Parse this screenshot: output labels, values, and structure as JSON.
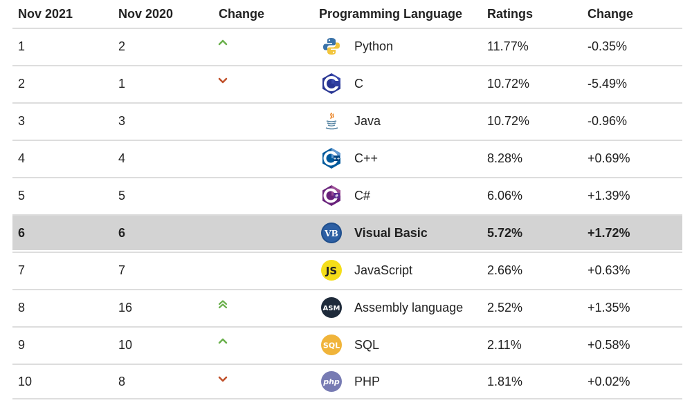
{
  "headers": {
    "col1": "Nov 2021",
    "col2": "Nov 2020",
    "col3": "Change",
    "col4": "Programming Language",
    "col5": "Ratings",
    "col6": "Change"
  },
  "colors": {
    "up": "#6ab04c",
    "down": "#c0502a",
    "highlight_row": "#d3d3d3",
    "divider": "#dddddd"
  },
  "rows": [
    {
      "rank_2021": "1",
      "rank_2020": "2",
      "trend": "up",
      "language": "Python",
      "icon": "python-logo-icon",
      "rating": "11.77%",
      "change": "-0.35%"
    },
    {
      "rank_2021": "2",
      "rank_2020": "1",
      "trend": "down",
      "language": "C",
      "icon": "c-logo-icon",
      "rating": "10.72%",
      "change": "-5.49%"
    },
    {
      "rank_2021": "3",
      "rank_2020": "3",
      "trend": "none",
      "language": "Java",
      "icon": "java-logo-icon",
      "rating": "10.72%",
      "change": "-0.96%"
    },
    {
      "rank_2021": "4",
      "rank_2020": "4",
      "trend": "none",
      "language": "C++",
      "icon": "cpp-logo-icon",
      "rating": "8.28%",
      "change": "+0.69%"
    },
    {
      "rank_2021": "5",
      "rank_2020": "5",
      "trend": "none",
      "language": "C#",
      "icon": "csharp-logo-icon",
      "rating": "6.06%",
      "change": "+1.39%"
    },
    {
      "rank_2021": "6",
      "rank_2020": "6",
      "trend": "none",
      "language": "Visual Basic",
      "icon": "vb-logo-icon",
      "rating": "5.72%",
      "change": "+1.72%",
      "highlighted": true
    },
    {
      "rank_2021": "7",
      "rank_2020": "7",
      "trend": "none",
      "language": "JavaScript",
      "icon": "js-logo-icon",
      "rating": "2.66%",
      "change": "+0.63%"
    },
    {
      "rank_2021": "8",
      "rank_2020": "16",
      "trend": "double-up",
      "language": "Assembly language",
      "icon": "asm-logo-icon",
      "rating": "2.52%",
      "change": "+1.35%"
    },
    {
      "rank_2021": "9",
      "rank_2020": "10",
      "trend": "up",
      "language": "SQL",
      "icon": "sql-logo-icon",
      "rating": "2.11%",
      "change": "+0.58%"
    },
    {
      "rank_2021": "10",
      "rank_2020": "8",
      "trend": "down",
      "language": "PHP",
      "icon": "php-logo-icon",
      "rating": "1.81%",
      "change": "+0.02%"
    }
  ],
  "icon_labels": {
    "vb": "VB",
    "js": "JS",
    "asm": "ASM",
    "sql": "SQL",
    "php": "php"
  }
}
